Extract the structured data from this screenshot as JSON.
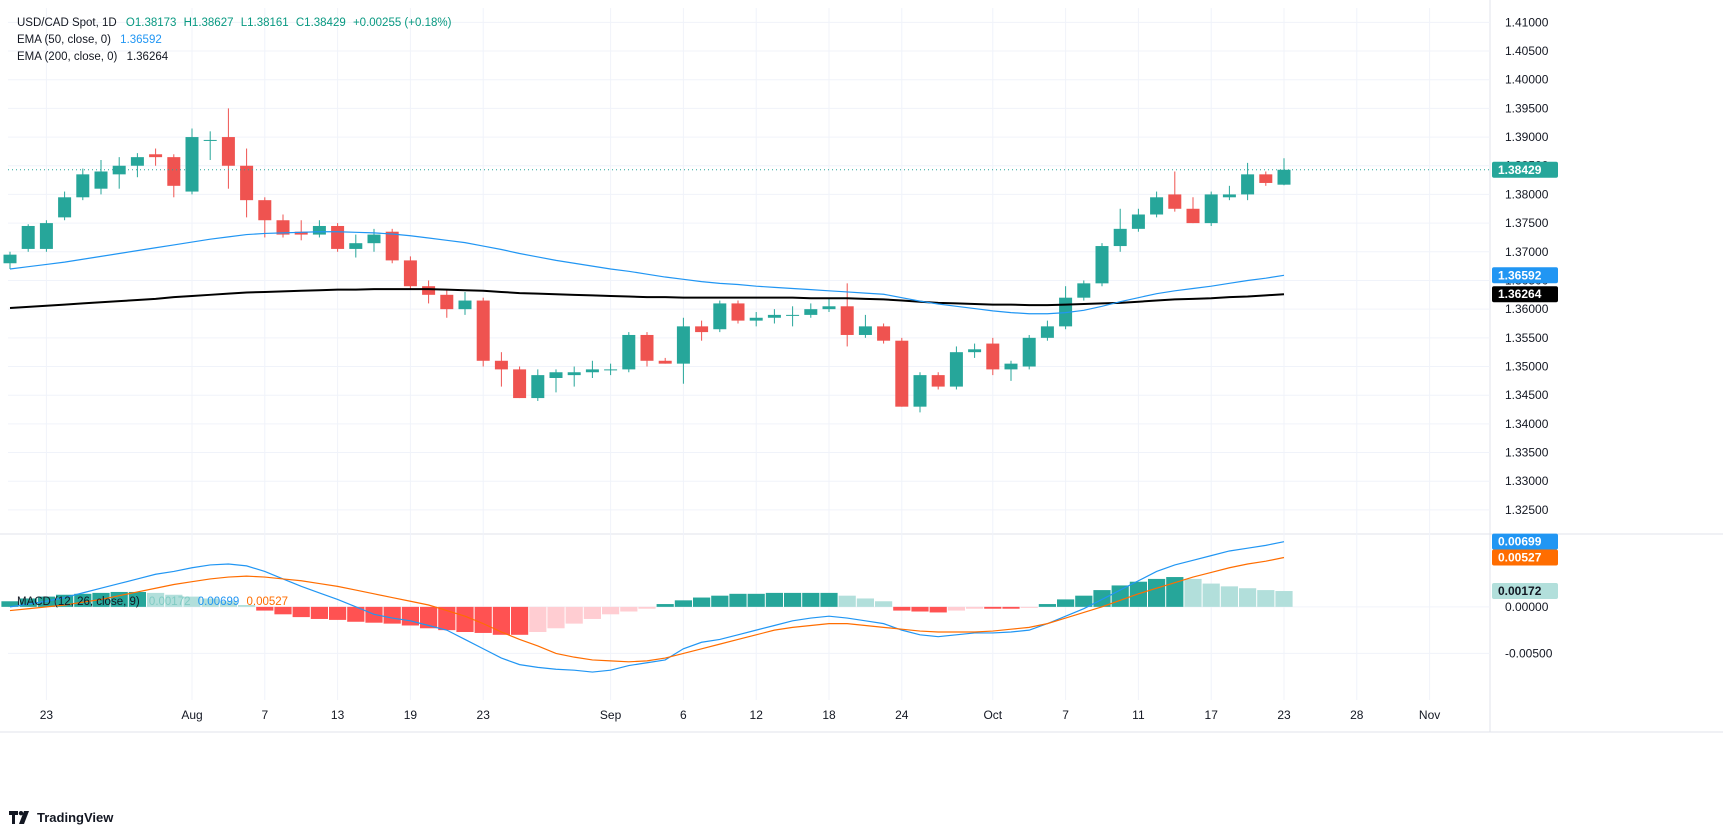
{
  "legend": {
    "symbol": "USD/CAD Spot, 1D",
    "ohlc": {
      "o": "O1.38173",
      "h": "H1.38627",
      "l": "L1.38161",
      "c": "C1.38429",
      "chg": "+0.00255 (+0.18%)"
    },
    "ema50": {
      "label": "EMA (50, close, 0)",
      "value": "1.36592"
    },
    "ema200": {
      "label": "EMA (200, close, 0)",
      "value": "1.36264"
    },
    "macd": {
      "label": "MACD (12, 26, close, 9)",
      "hist": "0.00172",
      "macd": "0.00699",
      "signal": "0.00527"
    }
  },
  "footer": {
    "brand": "TradingView"
  },
  "colors": {
    "up": "#26a69a",
    "down": "#ef5350",
    "ema50": "#2196f3",
    "ema200": "#000000",
    "macd": "#2196f3",
    "signal": "#ff6d00",
    "hist_up_strong": "#26a69a",
    "hist_up_weak": "#b2dfdb",
    "hist_down_strong": "#ff5252",
    "hist_down_weak": "#ffcdd2"
  },
  "chart_data": {
    "type": "candlestick",
    "x_tick_labels": [
      "23",
      "Aug",
      "7",
      "13",
      "19",
      "23",
      "Sep",
      "6",
      "12",
      "18",
      "24",
      "Oct",
      "7",
      "11",
      "17",
      "23",
      "28",
      "Nov"
    ],
    "price_axis": {
      "ticks": [
        "1.41000",
        "1.40500",
        "1.40000",
        "1.39500",
        "1.39000",
        "1.38500",
        "1.38000",
        "1.37500",
        "1.37000",
        "1.36500",
        "1.36000",
        "1.35500",
        "1.35000",
        "1.34500",
        "1.34000",
        "1.33500",
        "1.33000",
        "1.32500"
      ],
      "range": [
        1.3215,
        1.4125
      ]
    },
    "price_badges": {
      "last": "1.38429",
      "ema50": "1.36592",
      "ema200": "1.36264"
    },
    "candles": [
      {
        "o": 1.368,
        "h": 1.37,
        "l": 1.367,
        "c": 1.3695
      },
      {
        "o": 1.3705,
        "h": 1.3748,
        "l": 1.37,
        "c": 1.3745
      },
      {
        "o": 1.3705,
        "h": 1.3755,
        "l": 1.37,
        "c": 1.375
      },
      {
        "o": 1.376,
        "h": 1.3805,
        "l": 1.3755,
        "c": 1.3795
      },
      {
        "o": 1.3795,
        "h": 1.3845,
        "l": 1.379,
        "c": 1.3835
      },
      {
        "o": 1.381,
        "h": 1.386,
        "l": 1.38,
        "c": 1.384
      },
      {
        "o": 1.3835,
        "h": 1.3865,
        "l": 1.381,
        "c": 1.385
      },
      {
        "o": 1.385,
        "h": 1.3872,
        "l": 1.383,
        "c": 1.3865
      },
      {
        "o": 1.387,
        "h": 1.388,
        "l": 1.385,
        "c": 1.3865
      },
      {
        "o": 1.3865,
        "h": 1.387,
        "l": 1.3795,
        "c": 1.3815
      },
      {
        "o": 1.3805,
        "h": 1.3915,
        "l": 1.38,
        "c": 1.39
      },
      {
        "o": 1.3895,
        "h": 1.391,
        "l": 1.386,
        "c": 1.3895
      },
      {
        "o": 1.39,
        "h": 1.395,
        "l": 1.381,
        "c": 1.385
      },
      {
        "o": 1.385,
        "h": 1.388,
        "l": 1.376,
        "c": 1.379
      },
      {
        "o": 1.379,
        "h": 1.3795,
        "l": 1.3725,
        "c": 1.3755
      },
      {
        "o": 1.3755,
        "h": 1.3765,
        "l": 1.3725,
        "c": 1.373
      },
      {
        "o": 1.3735,
        "h": 1.3755,
        "l": 1.372,
        "c": 1.373
      },
      {
        "o": 1.373,
        "h": 1.3755,
        "l": 1.3725,
        "c": 1.3745
      },
      {
        "o": 1.3745,
        "h": 1.375,
        "l": 1.37,
        "c": 1.3705
      },
      {
        "o": 1.3705,
        "h": 1.373,
        "l": 1.369,
        "c": 1.3715
      },
      {
        "o": 1.3715,
        "h": 1.374,
        "l": 1.37,
        "c": 1.373
      },
      {
        "o": 1.3735,
        "h": 1.374,
        "l": 1.368,
        "c": 1.3685
      },
      {
        "o": 1.3685,
        "h": 1.3692,
        "l": 1.3635,
        "c": 1.364
      },
      {
        "o": 1.364,
        "h": 1.365,
        "l": 1.361,
        "c": 1.3625
      },
      {
        "o": 1.3625,
        "h": 1.3635,
        "l": 1.3585,
        "c": 1.36
      },
      {
        "o": 1.36,
        "h": 1.363,
        "l": 1.359,
        "c": 1.3615
      },
      {
        "o": 1.3615,
        "h": 1.362,
        "l": 1.35,
        "c": 1.351
      },
      {
        "o": 1.351,
        "h": 1.3525,
        "l": 1.3465,
        "c": 1.3495
      },
      {
        "o": 1.3495,
        "h": 1.35,
        "l": 1.3445,
        "c": 1.3445
      },
      {
        "o": 1.3445,
        "h": 1.3495,
        "l": 1.344,
        "c": 1.3485
      },
      {
        "o": 1.348,
        "h": 1.3495,
        "l": 1.3455,
        "c": 1.349
      },
      {
        "o": 1.3485,
        "h": 1.35,
        "l": 1.3465,
        "c": 1.349
      },
      {
        "o": 1.349,
        "h": 1.351,
        "l": 1.348,
        "c": 1.3495
      },
      {
        "o": 1.3495,
        "h": 1.3505,
        "l": 1.3485,
        "c": 1.3495
      },
      {
        "o": 1.3495,
        "h": 1.356,
        "l": 1.349,
        "c": 1.3555
      },
      {
        "o": 1.3555,
        "h": 1.356,
        "l": 1.35,
        "c": 1.351
      },
      {
        "o": 1.351,
        "h": 1.3515,
        "l": 1.3505,
        "c": 1.3505
      },
      {
        "o": 1.3505,
        "h": 1.3585,
        "l": 1.347,
        "c": 1.357
      },
      {
        "o": 1.357,
        "h": 1.358,
        "l": 1.3545,
        "c": 1.356
      },
      {
        "o": 1.3565,
        "h": 1.3615,
        "l": 1.356,
        "c": 1.361
      },
      {
        "o": 1.361,
        "h": 1.3615,
        "l": 1.3575,
        "c": 1.358
      },
      {
        "o": 1.358,
        "h": 1.3595,
        "l": 1.357,
        "c": 1.3585
      },
      {
        "o": 1.3585,
        "h": 1.36,
        "l": 1.3575,
        "c": 1.359
      },
      {
        "o": 1.359,
        "h": 1.3605,
        "l": 1.357,
        "c": 1.359
      },
      {
        "o": 1.359,
        "h": 1.361,
        "l": 1.3585,
        "c": 1.36
      },
      {
        "o": 1.36,
        "h": 1.362,
        "l": 1.3595,
        "c": 1.3605
      },
      {
        "o": 1.3605,
        "h": 1.3645,
        "l": 1.3535,
        "c": 1.3555
      },
      {
        "o": 1.3555,
        "h": 1.359,
        "l": 1.355,
        "c": 1.357
      },
      {
        "o": 1.357,
        "h": 1.3575,
        "l": 1.354,
        "c": 1.3545
      },
      {
        "o": 1.3545,
        "h": 1.355,
        "l": 1.343,
        "c": 1.343
      },
      {
        "o": 1.343,
        "h": 1.349,
        "l": 1.342,
        "c": 1.3485
      },
      {
        "o": 1.3485,
        "h": 1.349,
        "l": 1.346,
        "c": 1.3465
      },
      {
        "o": 1.3465,
        "h": 1.3535,
        "l": 1.346,
        "c": 1.3525
      },
      {
        "o": 1.3525,
        "h": 1.354,
        "l": 1.3515,
        "c": 1.353
      },
      {
        "o": 1.354,
        "h": 1.355,
        "l": 1.3485,
        "c": 1.3495
      },
      {
        "o": 1.3495,
        "h": 1.351,
        "l": 1.3475,
        "c": 1.3505
      },
      {
        "o": 1.35,
        "h": 1.3555,
        "l": 1.3495,
        "c": 1.355
      },
      {
        "o": 1.355,
        "h": 1.358,
        "l": 1.3545,
        "c": 1.357
      },
      {
        "o": 1.357,
        "h": 1.364,
        "l": 1.3565,
        "c": 1.362
      },
      {
        "o": 1.362,
        "h": 1.365,
        "l": 1.3615,
        "c": 1.3645
      },
      {
        "o": 1.3645,
        "h": 1.3715,
        "l": 1.364,
        "c": 1.371
      },
      {
        "o": 1.371,
        "h": 1.3775,
        "l": 1.37,
        "c": 1.374
      },
      {
        "o": 1.374,
        "h": 1.3775,
        "l": 1.3735,
        "c": 1.3765
      },
      {
        "o": 1.3765,
        "h": 1.3805,
        "l": 1.376,
        "c": 1.3795
      },
      {
        "o": 1.38,
        "h": 1.384,
        "l": 1.377,
        "c": 1.3775
      },
      {
        "o": 1.3775,
        "h": 1.3795,
        "l": 1.375,
        "c": 1.375
      },
      {
        "o": 1.375,
        "h": 1.3805,
        "l": 1.3745,
        "c": 1.38
      },
      {
        "o": 1.3795,
        "h": 1.3815,
        "l": 1.379,
        "c": 1.38
      },
      {
        "o": 1.38,
        "h": 1.3855,
        "l": 1.379,
        "c": 1.3835
      },
      {
        "o": 1.3835,
        "h": 1.384,
        "l": 1.3815,
        "c": 1.382
      },
      {
        "o": 1.3817,
        "h": 1.3863,
        "l": 1.3816,
        "c": 1.3843
      }
    ],
    "ema50": [
      1.367,
      1.3674,
      1.3678,
      1.3682,
      1.3687,
      1.3692,
      1.3697,
      1.3702,
      1.3707,
      1.3712,
      1.3717,
      1.3722,
      1.3726,
      1.373,
      1.3732,
      1.3733,
      1.3734,
      1.3735,
      1.3735,
      1.3734,
      1.3733,
      1.3731,
      1.3728,
      1.3724,
      1.372,
      1.3716,
      1.371,
      1.3704,
      1.3697,
      1.3691,
      1.3685,
      1.368,
      1.3675,
      1.367,
      1.3666,
      1.3661,
      1.3656,
      1.3652,
      1.3648,
      1.3645,
      1.3643,
      1.364,
      1.3638,
      1.3636,
      1.3634,
      1.3632,
      1.363,
      1.3628,
      1.3626,
      1.362,
      1.3614,
      1.3609,
      1.3605,
      1.3601,
      1.3597,
      1.3594,
      1.3592,
      1.3592,
      1.3594,
      1.3598,
      1.3605,
      1.3613,
      1.362,
      1.3627,
      1.3632,
      1.3636,
      1.364,
      1.3645,
      1.365,
      1.3654,
      1.3659
    ],
    "ema200": [
      1.3602,
      1.3604,
      1.3606,
      1.3608,
      1.361,
      1.3612,
      1.3614,
      1.3616,
      1.3618,
      1.3621,
      1.3623,
      1.3625,
      1.3627,
      1.3629,
      1.363,
      1.3631,
      1.3632,
      1.3633,
      1.3634,
      1.3634,
      1.3635,
      1.3635,
      1.3635,
      1.3635,
      1.3634,
      1.3633,
      1.3632,
      1.363,
      1.3628,
      1.3627,
      1.3626,
      1.3625,
      1.3624,
      1.3623,
      1.3622,
      1.3621,
      1.3621,
      1.362,
      1.362,
      1.362,
      1.362,
      1.362,
      1.362,
      1.362,
      1.3619,
      1.3619,
      1.3619,
      1.3618,
      1.3617,
      1.3615,
      1.3613,
      1.3611,
      1.361,
      1.3609,
      1.3608,
      1.3608,
      1.3607,
      1.3607,
      1.3608,
      1.3609,
      1.361,
      1.3611,
      1.3613,
      1.3615,
      1.3617,
      1.3618,
      1.3619,
      1.3621,
      1.3622,
      1.3624,
      1.3626
    ],
    "macd_axis": {
      "ticks": [
        "0.00000",
        "-0.00500"
      ],
      "range": [
        -0.01,
        0.0075
      ]
    },
    "macd_badges": {
      "macd": "0.00699",
      "signal": "0.00527",
      "hist": "0.00172"
    },
    "macd_line": [
      0.0,
      0.0003,
      0.0006,
      0.001,
      0.0015,
      0.002,
      0.0025,
      0.003,
      0.0035,
      0.0038,
      0.0042,
      0.0045,
      0.0046,
      0.0044,
      0.0038,
      0.003,
      0.0022,
      0.0015,
      0.0008,
      0.0,
      -0.0008,
      -0.0012,
      -0.0015,
      -0.002,
      -0.0025,
      -0.0035,
      -0.0045,
      -0.0055,
      -0.0062,
      -0.0065,
      -0.0067,
      -0.0068,
      -0.007,
      -0.0068,
      -0.0063,
      -0.006,
      -0.0057,
      -0.0045,
      -0.0038,
      -0.0035,
      -0.003,
      -0.0025,
      -0.002,
      -0.0015,
      -0.0012,
      -0.001,
      -0.0012,
      -0.0015,
      -0.0018,
      -0.0025,
      -0.003,
      -0.0032,
      -0.003,
      -0.0028,
      -0.0028,
      -0.0027,
      -0.0025,
      -0.0018,
      -0.001,
      -0.0002,
      0.0008,
      0.0018,
      0.0028,
      0.0038,
      0.0045,
      0.005,
      0.0055,
      0.006,
      0.0063,
      0.0066,
      0.007
    ],
    "signal_line": [
      -0.0004,
      -0.0002,
      0.0,
      0.0002,
      0.0005,
      0.0008,
      0.0012,
      0.0016,
      0.002,
      0.0024,
      0.0027,
      0.003,
      0.0032,
      0.0033,
      0.0032,
      0.003,
      0.0028,
      0.0025,
      0.0022,
      0.0018,
      0.0014,
      0.001,
      0.0006,
      0.0002,
      -0.0004,
      -0.001,
      -0.0018,
      -0.0027,
      -0.0035,
      -0.0042,
      -0.005,
      -0.0054,
      -0.0057,
      -0.0058,
      -0.0059,
      -0.0058,
      -0.0055,
      -0.005,
      -0.0045,
      -0.004,
      -0.0035,
      -0.003,
      -0.0025,
      -0.0022,
      -0.002,
      -0.0018,
      -0.0018,
      -0.002,
      -0.0022,
      -0.0024,
      -0.0026,
      -0.0027,
      -0.0027,
      -0.0027,
      -0.0026,
      -0.0024,
      -0.0022,
      -0.0018,
      -0.0012,
      -0.0006,
      0.0,
      0.0007,
      0.0014,
      0.002,
      0.0026,
      0.0032,
      0.0037,
      0.0042,
      0.0046,
      0.0049,
      0.0053
    ],
    "macd_hist": [
      0.0006,
      0.0009,
      0.0011,
      0.0013,
      0.0014,
      0.0015,
      0.0016,
      0.0016,
      0.0015,
      0.0013,
      0.0011,
      0.0009,
      0.0006,
      0.0002,
      -0.0004,
      -0.0008,
      -0.0011,
      -0.0013,
      -0.0014,
      -0.0016,
      -0.0017,
      -0.0018,
      -0.002,
      -0.0023,
      -0.0025,
      -0.0027,
      -0.0028,
      -0.003,
      -0.003,
      -0.0027,
      -0.0023,
      -0.0018,
      -0.0013,
      -0.0008,
      -0.0005,
      -0.0002,
      0.0003,
      0.0007,
      0.001,
      0.0012,
      0.0014,
      0.0014,
      0.0015,
      0.0015,
      0.0015,
      0.0015,
      0.0012,
      0.0009,
      0.0006,
      -0.0004,
      -0.0005,
      -0.0006,
      -0.0004,
      -0.0002,
      -0.0002,
      -0.0002,
      -0.0001,
      0.0003,
      0.0008,
      0.0012,
      0.0018,
      0.0023,
      0.0027,
      0.003,
      0.0032,
      0.003,
      0.0025,
      0.0022,
      0.002,
      0.0018,
      0.0017
    ]
  }
}
